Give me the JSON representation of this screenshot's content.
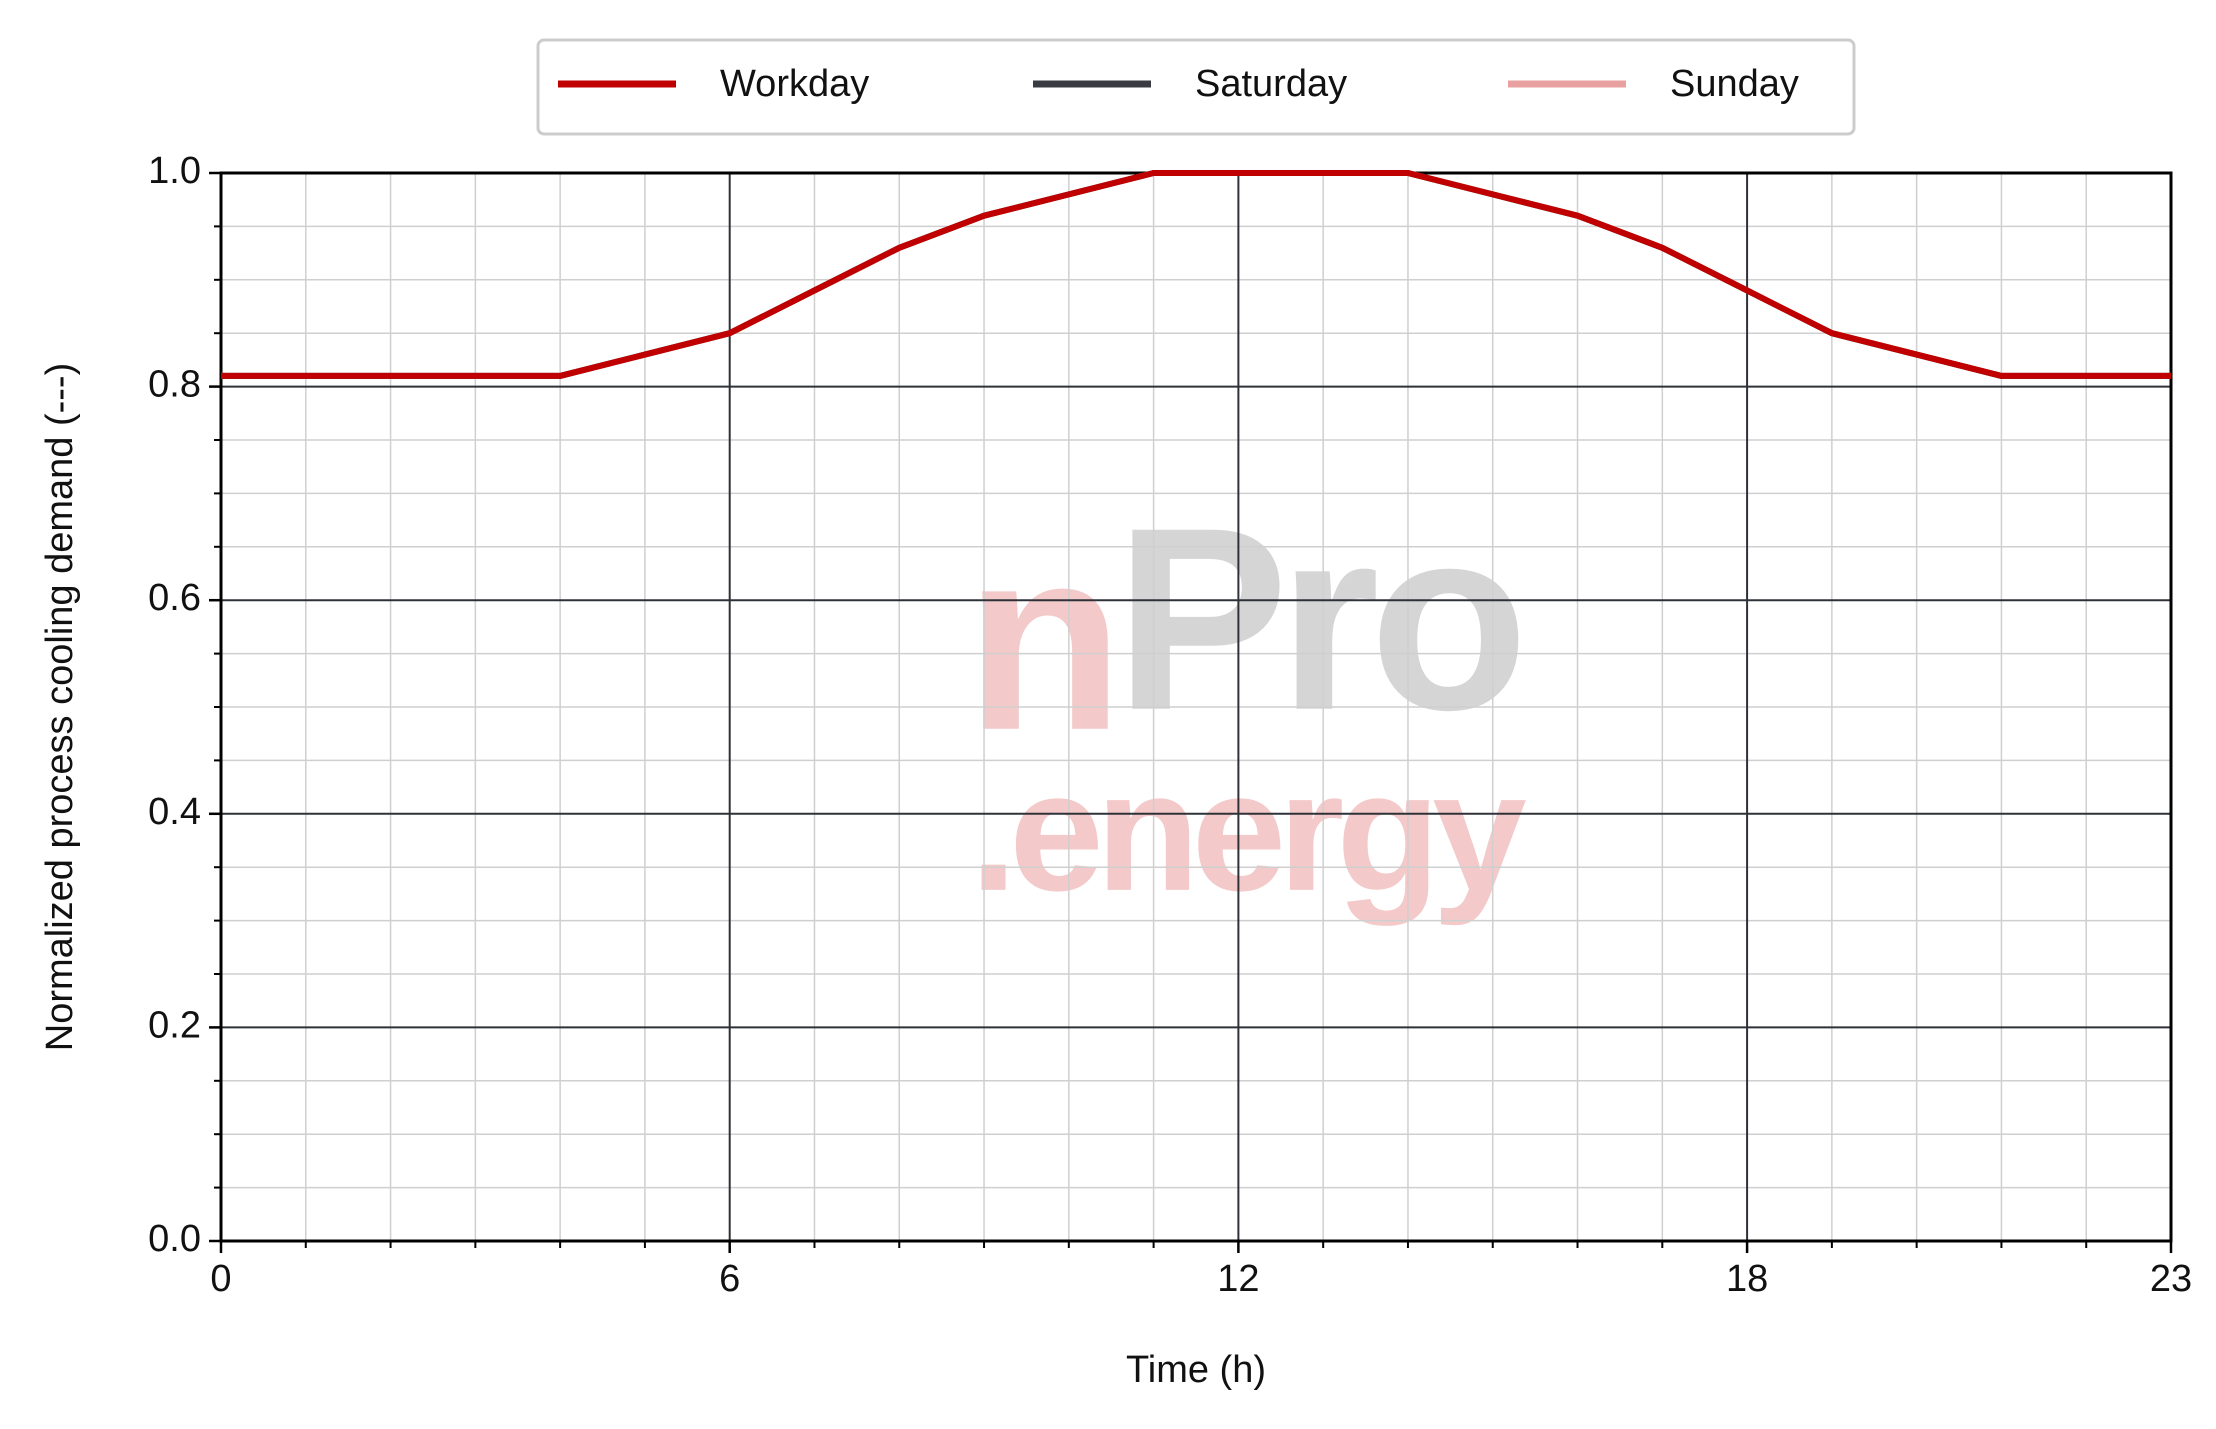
{
  "chart_data": {
    "type": "line",
    "x": [
      0,
      1,
      2,
      3,
      4,
      5,
      6,
      7,
      8,
      9,
      10,
      11,
      12,
      13,
      14,
      15,
      16,
      17,
      18,
      19,
      20,
      21,
      22,
      23
    ],
    "series": [
      {
        "name": "Workday",
        "color": "#c00000",
        "values": [
          0.81,
          0.81,
          0.81,
          0.81,
          0.81,
          0.83,
          0.85,
          0.89,
          0.93,
          0.96,
          0.98,
          1.0,
          1.0,
          1.0,
          1.0,
          0.98,
          0.96,
          0.93,
          0.89,
          0.85,
          0.83,
          0.81,
          0.81,
          0.81
        ]
      },
      {
        "name": "Saturday",
        "color": "#383c42",
        "values": [
          0.81,
          0.81,
          0.81,
          0.81,
          0.81,
          0.83,
          0.85,
          0.89,
          0.93,
          0.96,
          0.98,
          1.0,
          1.0,
          1.0,
          1.0,
          0.98,
          0.96,
          0.93,
          0.89,
          0.85,
          0.83,
          0.81,
          0.81,
          0.81
        ]
      },
      {
        "name": "Sunday",
        "color": "#e8a0a0",
        "values": [
          0.81,
          0.81,
          0.81,
          0.81,
          0.81,
          0.83,
          0.85,
          0.89,
          0.93,
          0.96,
          0.98,
          1.0,
          1.0,
          1.0,
          1.0,
          0.98,
          0.96,
          0.93,
          0.89,
          0.85,
          0.83,
          0.81,
          0.81,
          0.81
        ]
      }
    ],
    "xlabel": "Time (h)",
    "ylabel": "Normalized process cooling demand (---)",
    "xlim": [
      0,
      23
    ],
    "xticks": [
      0,
      6,
      12,
      18,
      23
    ],
    "xticks_minor": [
      1,
      2,
      3,
      4,
      5,
      7,
      8,
      9,
      10,
      11,
      13,
      14,
      15,
      16,
      17,
      19,
      20,
      21,
      22
    ],
    "ylim": [
      0,
      1
    ],
    "yticks": [
      {
        "value": 0,
        "label": "0.0"
      },
      0.2,
      0.4,
      0.6,
      0.8,
      {
        "value": 1,
        "label": "1.0"
      }
    ],
    "yticks_minor": [
      0.05,
      0.1,
      0.15,
      0.25,
      0.3,
      0.35,
      0.45,
      0.5,
      0.55,
      0.65,
      0.7,
      0.75,
      0.85,
      0.9,
      0.95
    ],
    "grid": true,
    "legend": "top",
    "watermark": [
      "n",
      "Pro",
      ".energy"
    ]
  }
}
